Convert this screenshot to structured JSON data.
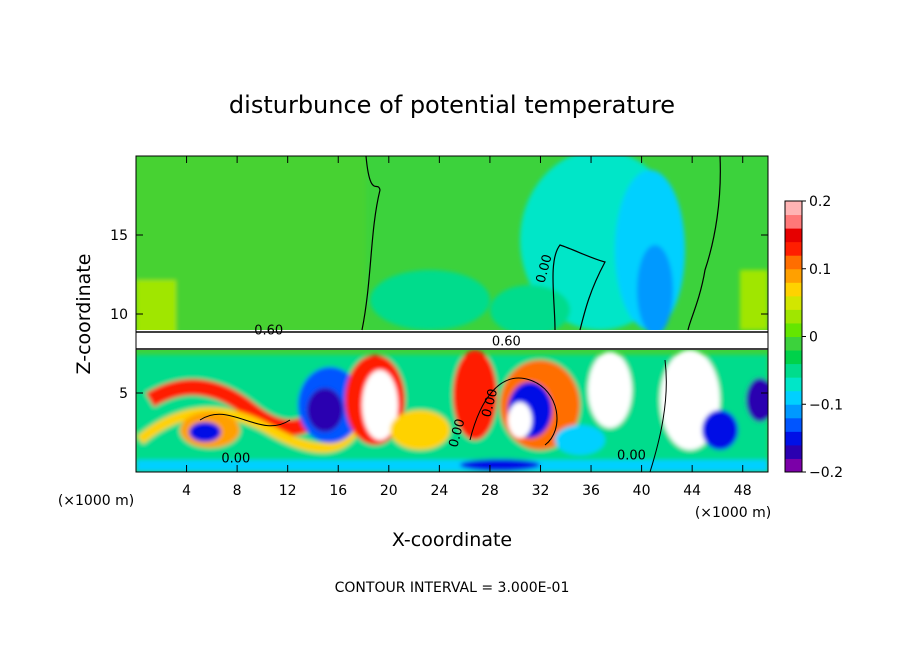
{
  "chart_data": {
    "type": "heatmap",
    "title": "disturbunce of potential temperature",
    "xlabel": "X-coordinate",
    "ylabel": "Z-coordinate",
    "x_unit": "(×1000 m)",
    "x_ticks": [
      4,
      8,
      12,
      16,
      20,
      24,
      28,
      32,
      36,
      40,
      44,
      48
    ],
    "y_ticks": [
      5,
      10,
      15
    ],
    "xlim": [
      0,
      50
    ],
    "ylim": [
      0,
      20
    ],
    "colorbar": {
      "range": [
        -0.2,
        0.2
      ],
      "ticks": [
        "0.2",
        "0.1",
        "0",
        "−0.1",
        "−0.2"
      ],
      "colors": [
        "#7b00a8",
        "#2a00b0",
        "#0010e6",
        "#0055ff",
        "#0099ff",
        "#00d0ff",
        "#00e6c8",
        "#00dc8c",
        "#00d24a",
        "#3cd23c",
        "#64e600",
        "#a0e600",
        "#d2e600",
        "#ffd200",
        "#ffa000",
        "#ff6e00",
        "#ff1e00",
        "#e60000",
        "#ff7878",
        "#ffb4b4"
      ]
    },
    "contour_labels": [
      {
        "text": "0.60",
        "x": 10.5,
        "z": 8.7
      },
      {
        "text": "0.60",
        "x": 29.3,
        "z": 8.0
      },
      {
        "text": "0.00",
        "x": 32.6,
        "z": 12.8
      },
      {
        "text": "0.00",
        "x": 28.3,
        "z": 4.3
      },
      {
        "text": "0.00",
        "x": 25.7,
        "z": 2.4
      },
      {
        "text": "0.00",
        "x": 7.9,
        "z": 0.6
      },
      {
        "text": "0.00",
        "x": 39.2,
        "z": 0.8
      }
    ],
    "footer": "CONTOUR INTERVAL = 3.000E-01"
  }
}
